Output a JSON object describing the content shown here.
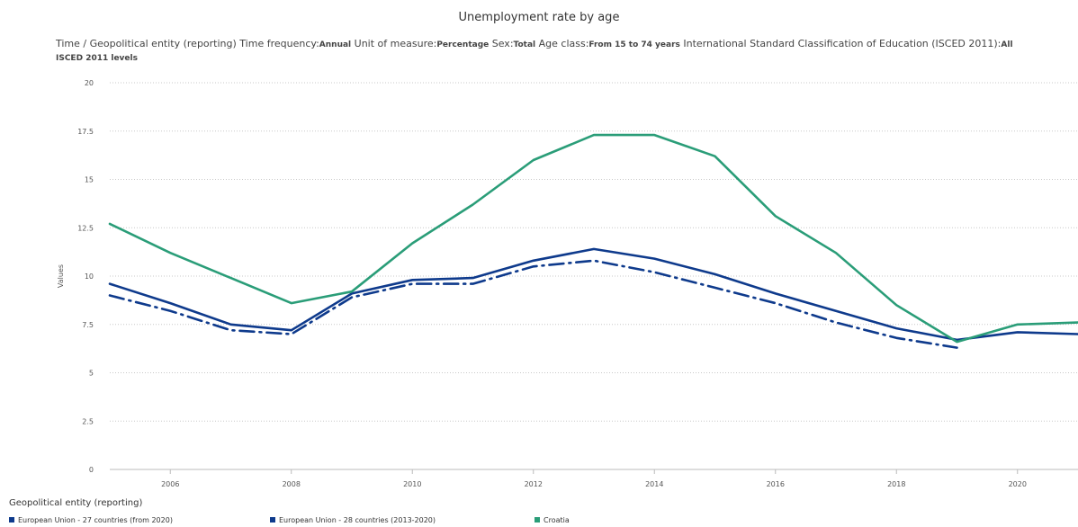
{
  "chart_data": {
    "type": "line",
    "title": "Unemployment rate by age",
    "subtitle": [
      {
        "k": "Time / Geopolitical entity (reporting)  Time frequency:",
        "v": "Annual"
      },
      {
        "k": "  Unit of measure:",
        "v": "Percentage"
      },
      {
        "k": "  Sex:",
        "v": "Total"
      },
      {
        "k": "  Age class:",
        "v": "From 15 to 74 years"
      },
      {
        "k": "  International Standard Classification of Education (ISCED 2011):",
        "v": "All ISCED 2011 levels"
      }
    ],
    "ylabel": "Values",
    "xlabel": "",
    "xlim": [
      2005,
      2021
    ],
    "ylim": [
      0,
      20
    ],
    "x_ticks": [
      2006,
      2008,
      2010,
      2012,
      2014,
      2016,
      2018,
      2020
    ],
    "y_ticks": [
      "0",
      "2.5",
      "5",
      "7.5",
      "10",
      "12.5",
      "15",
      "17.5",
      "20"
    ],
    "grid": "horizontal dotted",
    "legend_title": "Geopolitical entity (reporting)",
    "legend_position": "bottom",
    "series": [
      {
        "name": "European Union - 27 countries (from 2020)",
        "color": "#0e3a8c",
        "dash": "solid",
        "x": [
          2005,
          2006,
          2007,
          2008,
          2009,
          2010,
          2011,
          2012,
          2013,
          2014,
          2015,
          2016,
          2017,
          2018,
          2019,
          2020,
          2021
        ],
        "values": [
          9.6,
          8.6,
          7.5,
          7.2,
          9.1,
          9.8,
          9.9,
          10.8,
          11.4,
          10.9,
          10.1,
          9.1,
          8.2,
          7.3,
          6.7,
          7.1,
          7.0
        ]
      },
      {
        "name": "European Union - 28 countries (2013-2020)",
        "color": "#0e3a8c",
        "dash": "dashdot",
        "x": [
          2005,
          2006,
          2007,
          2008,
          2009,
          2010,
          2011,
          2012,
          2013,
          2014,
          2015,
          2016,
          2017,
          2018,
          2019
        ],
        "values": [
          9.0,
          8.2,
          7.2,
          7.0,
          8.9,
          9.6,
          9.6,
          10.5,
          10.8,
          10.2,
          9.4,
          8.6,
          7.6,
          6.8,
          6.3
        ]
      },
      {
        "name": "Croatia",
        "color": "#2a9d78",
        "dash": "solid",
        "x": [
          2005,
          2006,
          2007,
          2008,
          2009,
          2010,
          2011,
          2012,
          2013,
          2014,
          2015,
          2016,
          2017,
          2018,
          2019,
          2020,
          2021
        ],
        "values": [
          12.7,
          11.2,
          9.9,
          8.6,
          9.2,
          11.7,
          13.7,
          16.0,
          17.3,
          17.3,
          16.2,
          13.1,
          11.2,
          8.5,
          6.6,
          7.5,
          7.6
        ]
      }
    ]
  }
}
